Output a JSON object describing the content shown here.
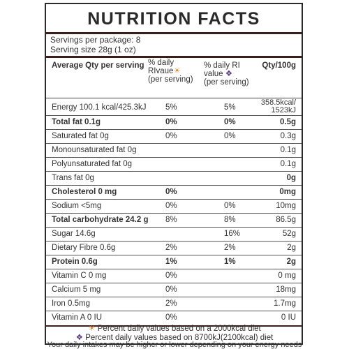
{
  "title": "NUTRITION FACTS",
  "servings": {
    "per_package": "Servings per package: 8",
    "serving_size": "Serving size 28g (1 oz)"
  },
  "headers": {
    "name": "Average Qty per serving",
    "dv_line1": "% daily",
    "dv_line2": "RIvaue",
    "dv_line3": "(per serving)",
    "ri_line1": "% daily RI",
    "ri_line2": "value",
    "ri_line3": "(per serving)",
    "qty": "Qty/100g"
  },
  "icons": {
    "sun": "☀",
    "diamond": "❖"
  },
  "rows": [
    {
      "name": "Energy 100.1 kcal/425.3kJ",
      "dv": "5%",
      "ri": "5%",
      "qty1": "358.5kcal/",
      "qty2": "1523kJ"
    },
    {
      "name": "Total fat 0.1g",
      "dv": "0%",
      "ri": "0%",
      "qty": "0.5g"
    },
    {
      "name": "Saturated fat 0g",
      "dv": "0%",
      "ri": "0%",
      "qty": "0.3g"
    },
    {
      "name": "Monounsaturated fat 0g",
      "dv": "",
      "ri": "",
      "qty": "0.1g"
    },
    {
      "name": "Polyunsaturated fat 0g",
      "dv": "",
      "ri": "",
      "qty": "0.1g"
    },
    {
      "name": "Trans fat 0g",
      "dv": "",
      "ri": "",
      "qty": "0g"
    },
    {
      "name": "Cholesterol 0 mg",
      "dv": "0%",
      "ri": "",
      "qty": "0mg"
    },
    {
      "name": "Sodium <5mg",
      "dv": "0%",
      "ri": "0%",
      "qty": "10mg"
    },
    {
      "name": "Total carbohydrate 24.2 g",
      "dv": "8%",
      "ri": "8%",
      "qty": "86.5g"
    },
    {
      "name": "Sugar 14.6g",
      "dv": "",
      "ri": "16%",
      "qty": "52g"
    },
    {
      "name": "Dietary Fibre  0.6g",
      "dv": "2%",
      "ri": "2%",
      "qty": "2g"
    },
    {
      "name": "Protein 0.6g",
      "dv": "1%",
      "ri": "1%",
      "qty": "2g"
    },
    {
      "name": "Vitamin C 0 mg",
      "dv": "0%",
      "ri": "",
      "qty": "0 mg"
    },
    {
      "name": "Calcium 5 mg",
      "dv": "0%",
      "ri": "",
      "qty": "18mg"
    },
    {
      "name": "Iron 0.5mg",
      "dv": "2%",
      "ri": "",
      "qty": "1.7mg"
    },
    {
      "name": "Vitamin A 0 IU",
      "dv": "0%",
      "ri": "",
      "qty": "0 IU"
    }
  ],
  "footnotes": {
    "dv": "Percent daily values based on a 2000kcal diet",
    "ri": "Percent daily values based on 8700kJ(2100kcal) diet",
    "intake": "Your daily intakes may be higher or lower depending on your energy needs"
  },
  "colors": {
    "rule": "#3a1f1a",
    "sun": "#e08a2c",
    "diamond": "#5b3a7c"
  }
}
